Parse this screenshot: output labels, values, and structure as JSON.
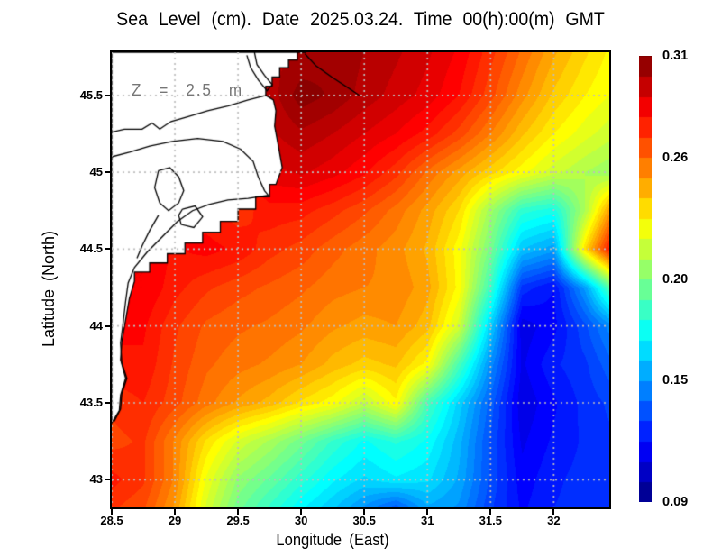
{
  "chart_data": {
    "type": "heatmap",
    "title": "Sea Level (cm). Date 2025.03.24. Time 00(h):00(m) GMT",
    "xlabel": "Longitude (East)",
    "ylabel": "Latitude (North)",
    "annotation": "Z = 2.5 m",
    "units": "cm",
    "grid": true,
    "x_range": [
      28.5,
      32.44
    ],
    "y_range": [
      42.82,
      45.78
    ],
    "x_ticks": [
      28.5,
      29,
      29.5,
      30,
      30.5,
      31,
      31.5,
      32
    ],
    "y_ticks": [
      43,
      43.5,
      44,
      44.5,
      45,
      45.5
    ],
    "colorbar": {
      "min": 0.09,
      "max": 0.31,
      "colormap": "jet",
      "tick_labels": [
        "0.31",
        "0.26",
        "0.20",
        "0.15",
        "0.09"
      ],
      "levels": 22
    },
    "lons": [
      28.5,
      28.75,
      29.0,
      29.25,
      29.5,
      29.75,
      30.0,
      30.25,
      30.5,
      30.75,
      31.0,
      31.25,
      31.5,
      31.75,
      32.0,
      32.25,
      32.44
    ],
    "lats": [
      45.78,
      45.5,
      45.25,
      45.0,
      44.75,
      44.5,
      44.25,
      44.0,
      43.75,
      43.5,
      43.25,
      43.0,
      42.82
    ],
    "values": [
      [
        null,
        null,
        null,
        null,
        null,
        null,
        0.3,
        0.304,
        0.3,
        0.296,
        0.291,
        0.284,
        0.272,
        0.259,
        0.246,
        0.236,
        0.229
      ],
      [
        null,
        null,
        null,
        null,
        null,
        0.297,
        0.308,
        0.304,
        0.298,
        0.293,
        0.288,
        0.28,
        0.267,
        0.252,
        0.239,
        0.23,
        0.225
      ],
      [
        null,
        null,
        null,
        null,
        null,
        0.294,
        0.299,
        0.295,
        0.29,
        0.285,
        0.278,
        0.268,
        0.255,
        0.241,
        0.23,
        0.222,
        0.217
      ],
      [
        null,
        null,
        null,
        null,
        null,
        0.288,
        0.291,
        0.287,
        0.281,
        0.272,
        0.259,
        0.248,
        0.237,
        0.227,
        0.217,
        0.21,
        0.206
      ],
      [
        null,
        null,
        null,
        null,
        0.272,
        0.278,
        0.277,
        0.272,
        0.266,
        0.258,
        0.248,
        0.235,
        0.207,
        0.182,
        0.177,
        0.21,
        0.248
      ],
      [
        null,
        null,
        null,
        0.282,
        0.279,
        0.272,
        0.268,
        0.262,
        0.257,
        0.252,
        0.244,
        0.227,
        0.198,
        0.16,
        0.152,
        0.235,
        0.277
      ],
      [
        null,
        0.285,
        0.277,
        0.271,
        0.267,
        0.264,
        0.261,
        0.257,
        0.255,
        0.254,
        0.247,
        0.228,
        0.185,
        0.128,
        0.12,
        0.152,
        0.19
      ],
      [
        null,
        0.281,
        0.271,
        0.264,
        0.261,
        0.259,
        0.256,
        0.251,
        0.248,
        0.25,
        0.242,
        0.218,
        0.163,
        0.112,
        0.118,
        0.134,
        0.147
      ],
      [
        null,
        0.279,
        0.269,
        0.261,
        0.257,
        0.254,
        0.25,
        0.243,
        0.238,
        0.241,
        0.228,
        0.188,
        0.148,
        0.114,
        0.124,
        0.129,
        0.138
      ],
      [
        null,
        0.275,
        0.267,
        0.257,
        0.249,
        0.243,
        0.234,
        0.227,
        0.214,
        0.229,
        0.188,
        0.163,
        0.138,
        0.111,
        0.119,
        0.127,
        0.131
      ],
      [
        0.268,
        0.271,
        0.254,
        0.234,
        0.219,
        0.209,
        0.197,
        0.184,
        0.174,
        0.181,
        0.174,
        0.157,
        0.134,
        0.114,
        0.121,
        0.126,
        0.129
      ],
      [
        0.277,
        0.271,
        0.254,
        0.224,
        0.204,
        0.194,
        0.182,
        0.171,
        0.164,
        0.169,
        0.166,
        0.154,
        0.134,
        0.117,
        0.124,
        0.127,
        0.129
      ],
      [
        0.271,
        0.266,
        0.249,
        0.219,
        0.197,
        0.184,
        0.171,
        0.161,
        0.149,
        0.137,
        0.154,
        0.149,
        0.131,
        0.119,
        0.125,
        0.127,
        0.127
      ]
    ],
    "land_polygon": [
      [
        28.5,
        45.78,
        0
      ],
      [
        30.04,
        45.78,
        0
      ],
      [
        29.97,
        45.73,
        1
      ],
      [
        29.9,
        45.68,
        1
      ],
      [
        29.83,
        45.62,
        1
      ],
      [
        29.77,
        45.56,
        1
      ],
      [
        29.72,
        45.5,
        1
      ],
      [
        29.78,
        45.47,
        0
      ],
      [
        29.8,
        45.4,
        0
      ],
      [
        29.79,
        45.3,
        0
      ],
      [
        29.82,
        45.17,
        0
      ],
      [
        29.85,
        45.03,
        0
      ],
      [
        29.8,
        44.92,
        0
      ],
      [
        29.75,
        44.84,
        1
      ],
      [
        29.64,
        44.76,
        1
      ],
      [
        29.5,
        44.68,
        1
      ],
      [
        29.36,
        44.61,
        1
      ],
      [
        29.22,
        44.54,
        1
      ],
      [
        29.08,
        44.47,
        1
      ],
      [
        28.94,
        44.41,
        1
      ],
      [
        28.8,
        44.35,
        1
      ],
      [
        28.68,
        44.29,
        1
      ],
      [
        28.64,
        44.18,
        0
      ],
      [
        28.61,
        44.04,
        0
      ],
      [
        28.58,
        43.9,
        0
      ],
      [
        28.57,
        43.78,
        0
      ],
      [
        28.61,
        43.66,
        0
      ],
      [
        28.57,
        43.55,
        0
      ],
      [
        28.56,
        43.45,
        0
      ],
      [
        28.5,
        43.37,
        0
      ]
    ],
    "coastlines": [
      [
        [
          29.72,
          45.5
        ],
        [
          29.58,
          45.47
        ],
        [
          29.42,
          45.43
        ],
        [
          29.26,
          45.4
        ],
        [
          29.1,
          45.36
        ],
        [
          28.97,
          45.33
        ],
        [
          28.88,
          45.28
        ],
        [
          28.82,
          45.32
        ],
        [
          28.74,
          45.28
        ],
        [
          28.6,
          45.28
        ],
        [
          28.5,
          45.26
        ]
      ],
      [
        [
          28.5,
          45.1
        ],
        [
          28.64,
          45.13
        ],
        [
          28.8,
          45.17
        ],
        [
          28.98,
          45.2
        ],
        [
          29.18,
          45.22
        ],
        [
          29.38,
          45.2
        ],
        [
          29.52,
          45.15
        ],
        [
          29.62,
          45.07
        ],
        [
          29.66,
          44.97
        ],
        [
          29.71,
          44.88
        ],
        [
          29.74,
          44.85
        ],
        [
          29.58,
          44.83
        ],
        [
          29.42,
          44.82
        ],
        [
          29.27,
          44.79
        ],
        [
          29.14,
          44.75
        ],
        [
          29.02,
          44.68
        ],
        [
          28.9,
          44.58
        ],
        [
          28.78,
          44.48
        ],
        [
          28.68,
          44.38
        ],
        [
          28.63,
          44.28
        ],
        [
          28.61,
          44.16
        ],
        [
          28.59,
          44.02
        ],
        [
          28.57,
          43.89
        ],
        [
          28.58,
          43.76
        ],
        [
          28.62,
          43.66
        ],
        [
          28.58,
          43.56
        ],
        [
          28.57,
          43.46
        ],
        [
          28.52,
          43.38
        ]
      ],
      [
        [
          28.87,
          45.01
        ],
        [
          28.96,
          45.03
        ],
        [
          29.03,
          44.97
        ],
        [
          29.07,
          44.88
        ],
        [
          29.03,
          44.8
        ],
        [
          28.95,
          44.75
        ],
        [
          28.88,
          44.8
        ],
        [
          28.84,
          44.9
        ],
        [
          28.87,
          45.01
        ]
      ],
      [
        [
          29.06,
          44.76
        ],
        [
          29.16,
          44.78
        ],
        [
          29.22,
          44.71
        ],
        [
          29.15,
          44.64
        ],
        [
          29.05,
          44.66
        ],
        [
          29.03,
          44.72
        ],
        [
          29.06,
          44.76
        ]
      ],
      [
        [
          28.87,
          44.72
        ],
        [
          28.8,
          44.62
        ],
        [
          28.74,
          44.52
        ],
        [
          28.7,
          44.44
        ]
      ],
      [
        [
          29.63,
          45.78
        ],
        [
          29.65,
          45.7
        ],
        [
          29.71,
          45.63
        ],
        [
          29.77,
          45.57
        ],
        [
          29.73,
          45.53
        ],
        [
          29.66,
          45.6
        ],
        [
          29.6,
          45.68
        ],
        [
          29.57,
          45.76
        ]
      ],
      [
        [
          30.03,
          45.77
        ],
        [
          30.12,
          45.69
        ],
        [
          30.24,
          45.62
        ],
        [
          30.37,
          45.55
        ],
        [
          30.46,
          45.5
        ]
      ]
    ]
  },
  "style": {
    "land_color": "#ffffff",
    "coast_color": "#000000",
    "gridline_color": "#bebebe",
    "annotation_color": "#767676",
    "frame_color": "#000000"
  }
}
